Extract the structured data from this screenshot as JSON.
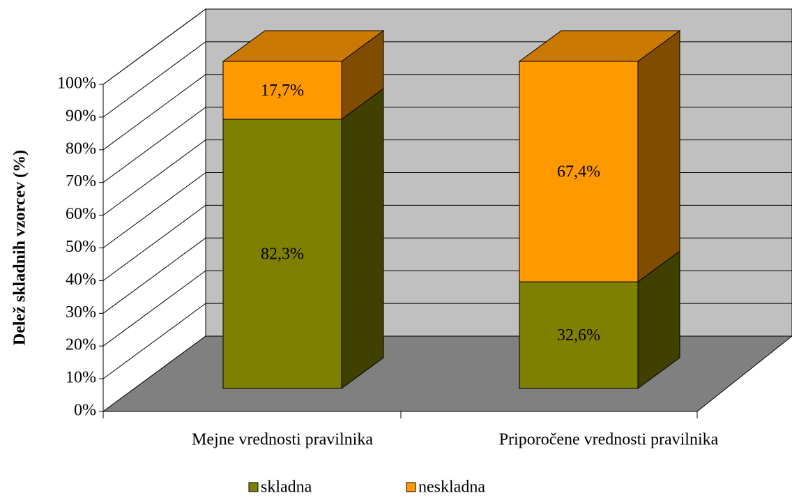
{
  "chart_data": {
    "type": "stacked_bar_3d",
    "y_label": "Delež skladnih vzorcev (%)",
    "categories": [
      "Mejne vrednosti pravilnika",
      "Priporočene vrednosti pravilnika"
    ],
    "series": [
      {
        "name": "skladna",
        "color": "#808000",
        "values": [
          82.3,
          32.6
        ],
        "value_labels": [
          "82,3%",
          "32,6%"
        ]
      },
      {
        "name": "neskladna",
        "color": "#ff9900",
        "values": [
          17.7,
          67.4
        ],
        "value_labels": [
          "17,7%",
          "67,4%"
        ]
      }
    ],
    "ylim": [
      0,
      100
    ],
    "yticks": [
      {
        "value": 0,
        "label": "0%"
      },
      {
        "value": 10,
        "label": "10%"
      },
      {
        "value": 20,
        "label": "20%"
      },
      {
        "value": 30,
        "label": "30%"
      },
      {
        "value": 40,
        "label": "40%"
      },
      {
        "value": 50,
        "label": "50%"
      },
      {
        "value": 60,
        "label": "60%"
      },
      {
        "value": 70,
        "label": "70%"
      },
      {
        "value": 80,
        "label": "80%"
      },
      {
        "value": 90,
        "label": "90%"
      },
      {
        "value": 100,
        "label": "100%"
      }
    ],
    "grid": true
  }
}
